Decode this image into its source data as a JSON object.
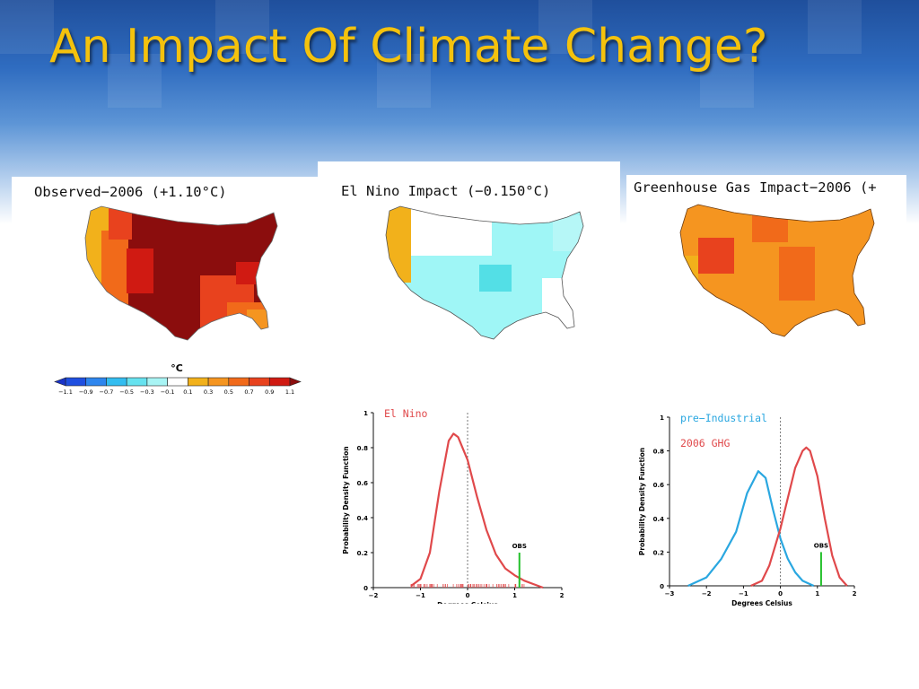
{
  "slide": {
    "title": "An Impact Of Climate Change?"
  },
  "maps": {
    "observed_title": "Observed−2006 (+1.10°C)",
    "elnino_title": "El Nino Impact (−0.150°C)",
    "ghg_title": "Greenhouse Gas Impact−2006 (+",
    "colorbar_unit": "°C",
    "colorbar_ticks": [
      "−1.1",
      "−0.9",
      "−0.7",
      "−0.5",
      "−0.3",
      "−0.1",
      "0.1",
      "0.3",
      "0.5",
      "0.7",
      "0.9",
      "1.1"
    ],
    "colorbar_colors": [
      "#1f4fe0",
      "#2e86ee",
      "#33bdf0",
      "#66e2ef",
      "#a8f4f4",
      "#ffffff",
      "#f2b11b",
      "#f59520",
      "#f16a1a",
      "#e8421e",
      "#d01a12"
    ]
  },
  "chart_data": [
    {
      "type": "line",
      "series": [
        {
          "name": "El Nino",
          "x": [
            -1.2,
            -1.0,
            -0.8,
            -0.6,
            -0.4,
            -0.3,
            -0.2,
            0.0,
            0.2,
            0.4,
            0.6,
            0.8,
            1.0,
            1.2,
            1.4,
            1.6
          ],
          "y": [
            0.01,
            0.05,
            0.2,
            0.55,
            0.84,
            0.88,
            0.86,
            0.73,
            0.52,
            0.33,
            0.19,
            0.11,
            0.07,
            0.04,
            0.02,
            0.0
          ],
          "color": "#e0494b"
        }
      ],
      "xlim": [
        -2,
        2
      ],
      "ylim": [
        0,
        1
      ],
      "xticks": [
        "−2",
        "−1",
        "0",
        "1",
        "2"
      ],
      "yticks": [
        "0",
        "0.2",
        "0.4",
        "0.6",
        "0.8",
        "1"
      ],
      "ylabel": "Probability Density Function",
      "xlabel": "Degrees Celsius",
      "obs_label": "OBS",
      "obs_x": 1.1,
      "obs_y": 0.2
    },
    {
      "type": "line",
      "series": [
        {
          "name": "pre−Industrial",
          "x": [
            -2.5,
            -2.0,
            -1.6,
            -1.2,
            -0.9,
            -0.6,
            -0.4,
            -0.2,
            0.0,
            0.2,
            0.4,
            0.6,
            0.9
          ],
          "y": [
            0.0,
            0.05,
            0.16,
            0.32,
            0.55,
            0.68,
            0.64,
            0.45,
            0.28,
            0.16,
            0.08,
            0.03,
            0.0
          ],
          "color": "#2aa7e0"
        },
        {
          "name": "2006 GHG",
          "x": [
            -0.8,
            -0.5,
            -0.3,
            0.0,
            0.2,
            0.4,
            0.6,
            0.7,
            0.8,
            1.0,
            1.2,
            1.4,
            1.6,
            1.8
          ],
          "y": [
            0.0,
            0.03,
            0.12,
            0.34,
            0.52,
            0.7,
            0.8,
            0.82,
            0.8,
            0.65,
            0.4,
            0.18,
            0.05,
            0.0
          ],
          "color": "#e0494b"
        }
      ],
      "xlim": [
        -3,
        2
      ],
      "ylim": [
        0,
        1
      ],
      "xticks": [
        "−3",
        "−2",
        "−1",
        "0",
        "1",
        "2"
      ],
      "yticks": [
        "0",
        "0.2",
        "0.4",
        "0.6",
        "0.8",
        "1"
      ],
      "ylabel": "Probability Density Function",
      "xlabel": "Degrees Celsius",
      "obs_label": "OBS",
      "obs_x": 1.1,
      "obs_y": 0.2
    }
  ]
}
